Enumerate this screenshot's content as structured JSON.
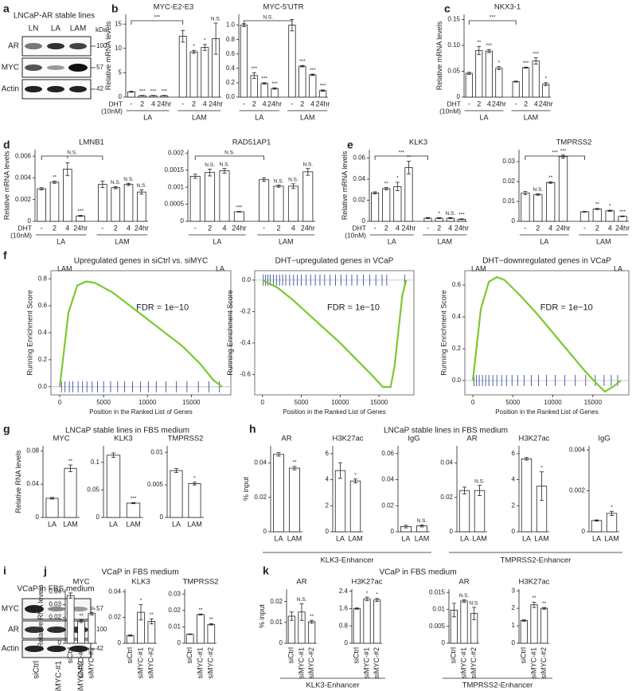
{
  "figure": {
    "panels": [
      "a",
      "b",
      "c",
      "d",
      "e",
      "f",
      "g",
      "h",
      "i",
      "j",
      "k"
    ],
    "blot_a": {
      "title": "LNCaP-AR stable lines",
      "lanes": [
        "LN",
        "LA",
        "LAM"
      ],
      "rows": [
        "AR",
        "MYC",
        "Actin"
      ],
      "unit": "kDa",
      "markers": [
        100,
        57,
        42
      ]
    },
    "blot_i": {
      "title": "VCaP in FBS medium",
      "lanes": [
        "siCtrl",
        "siMYC-#1",
        "siMYC-#2"
      ],
      "rows": [
        "MYC",
        "AR",
        "Actin"
      ],
      "markers": [
        57,
        100,
        42
      ]
    },
    "g_title": "LNCaP stable lines in FBS medium",
    "h_title": "LNCaP stable lines in FBS medium",
    "h_groups": [
      "KLK3-Enhancer",
      "TMPRSS2-Enhancer"
    ],
    "j_title": "VCaP in FBS medium",
    "k_title": "VCaP in FBS medium",
    "k_groups": [
      "KLK3-Enhancer",
      "TMPRSS2-Enhancer"
    ]
  },
  "chart_data": [
    {
      "type": "bar",
      "title": "MYC-E2-E3",
      "y_label": "Relative mRNA levels",
      "treatment_label": [
        "DHT",
        "(10nM)"
      ],
      "categories": [
        "-",
        "2",
        "4",
        "24hr",
        "-",
        "2",
        "4",
        "24hr"
      ],
      "groups": [
        "LA",
        "LAM"
      ],
      "values": [
        1.1,
        0.3,
        0.3,
        0.3,
        12.5,
        9.3,
        10.2,
        12
      ],
      "errors": [
        0.1,
        0.05,
        0.05,
        0.05,
        1.2,
        0.3,
        0.6,
        3.2
      ],
      "sig": [
        null,
        "***",
        "***",
        "***",
        null,
        "*",
        "*",
        "N.S."
      ],
      "bracket": "***",
      "ylim": [
        0,
        17
      ],
      "yticks": [
        0,
        5,
        10,
        15
      ]
    },
    {
      "type": "bar",
      "title": "MYC-5'UTR",
      "categories": [
        "-",
        "2",
        "4",
        "24hr",
        "-",
        "2",
        "4",
        "24hr"
      ],
      "groups": [
        "LA",
        "LAM"
      ],
      "values": [
        1.0,
        0.3,
        0.19,
        0.12,
        1.0,
        0.43,
        0.31,
        0.09
      ],
      "errors": [
        0.02,
        0.04,
        0.01,
        0.01,
        0.08,
        0.01,
        0.01,
        0.01
      ],
      "sig": [
        null,
        "***",
        "***",
        "***",
        null,
        "***",
        "***",
        "***"
      ],
      "bracket": "N.S.",
      "ylim": [
        0,
        1.15
      ],
      "yticks": [
        {
          "value": 0,
          "label": "0.0"
        },
        0.2,
        0.4,
        0.6,
        0.8,
        {
          "value": 1,
          "label": "1.0"
        }
      ]
    },
    {
      "type": "bar",
      "title": "NKX3-1",
      "y_label": "Relative mRNA levels",
      "treatment_label": [
        "DHT",
        "(10nM)"
      ],
      "categories": [
        "-",
        "2",
        "4",
        "24hr",
        "-",
        "2",
        "4",
        "24hr"
      ],
      "groups": [
        "LA",
        "LAM"
      ],
      "values": [
        0.046,
        0.09,
        0.089,
        0.056,
        0.03,
        0.057,
        0.07,
        0.025
      ],
      "errors": [
        0.002,
        0.008,
        0.003,
        0.003,
        0.001,
        0.001,
        0.006,
        0.003
      ],
      "sig": [
        null,
        "**",
        "***",
        "*",
        null,
        "***",
        "***",
        "*"
      ],
      "bracket": "***",
      "ylim": [
        0,
        0.16
      ],
      "yticks": [
        0,
        0.05,
        {
          "value": 0.1,
          "label": "0.10"
        },
        0.15
      ]
    },
    {
      "type": "bar",
      "title": "LMNB1",
      "y_label": "Relative mRNA levels",
      "treatment_label": [
        "DHT",
        "(10nM)"
      ],
      "categories": [
        "-",
        "2",
        "4",
        "24hr",
        "-",
        "2",
        "4",
        "24hr"
      ],
      "groups": [
        "LA",
        "LAM"
      ],
      "values": [
        0.003,
        0.0036,
        0.0048,
        0.0005,
        0.0034,
        0.0031,
        0.0034,
        0.0027
      ],
      "errors": [
        0.0001,
        0.0001,
        0.0006,
        5e-05,
        0.0003,
        0.0001,
        0.0001,
        0.0002
      ],
      "sig": [
        null,
        "**",
        "*",
        "***",
        null,
        "N.S.",
        "N.S.",
        "N.S."
      ],
      "bracket": "N.S.",
      "ylim": [
        0,
        0.0066
      ],
      "yticks": [
        0,
        0.002,
        0.004,
        0.006
      ]
    },
    {
      "type": "bar",
      "title": "RAD51AP1",
      "categories": [
        "-",
        "2",
        "4",
        "24hr",
        "-",
        "2",
        "4",
        "24hr"
      ],
      "groups": [
        "LA",
        "LAM"
      ],
      "values": [
        0.00132,
        0.00143,
        0.00148,
        0.00028,
        0.00122,
        0.00103,
        0.00103,
        0.00145
      ],
      "errors": [
        6e-05,
        0.0001,
        7e-05,
        1e-05,
        5e-05,
        3e-05,
        7e-05,
        0.0001
      ],
      "sig": [
        null,
        "N.S.",
        "N.S.",
        "***",
        null,
        "N.S.",
        "N.S.",
        "N.S."
      ],
      "bracket": "N.S.",
      "ylim": [
        0,
        0.0021
      ],
      "yticks": [
        0,
        0.0005,
        0.001,
        0.0015,
        0.002
      ]
    },
    {
      "type": "bar",
      "title": "KLK3",
      "y_label": "Relative mRNA levels",
      "treatment_label": [
        "DHT",
        "(10nM)"
      ],
      "categories": [
        "-",
        "2",
        "4",
        "24hr",
        "-",
        "2",
        "4",
        "24hr"
      ],
      "groups": [
        "LA",
        "LAM"
      ],
      "values": [
        0.027,
        0.031,
        0.033,
        0.051,
        0.003,
        0.003,
        0.003,
        0.002
      ],
      "errors": [
        0.001,
        0.001,
        0.004,
        0.006,
        0.0005,
        0.0005,
        0.0005,
        0.0004
      ],
      "sig": [
        null,
        "**",
        "*",
        "**",
        null,
        "*",
        "N.S.",
        "***"
      ],
      "bracket": "***",
      "ylim": [
        0,
        0.068
      ],
      "yticks": [
        0,
        0.02,
        0.04,
        0.06
      ]
    },
    {
      "type": "bar",
      "title": "TMPRSS2",
      "categories": [
        "-",
        "2",
        "4",
        "24hr",
        "-",
        "2",
        "4",
        "24hr"
      ],
      "groups": [
        "LA",
        "LAM"
      ],
      "values": [
        0.0142,
        0.0135,
        0.0195,
        0.0325,
        0.0048,
        0.0062,
        0.0053,
        0.0025
      ],
      "errors": [
        0.0008,
        0.0004,
        0.0004,
        0.0008,
        0.0002,
        0.0003,
        0.0003,
        0.0002
      ],
      "sig": [
        null,
        "N.S.",
        "**",
        "***",
        null,
        "**",
        "*",
        "***"
      ],
      "bracket": "***",
      "ylim": [
        0,
        0.036
      ],
      "yticks": [
        0,
        0.01,
        0.02,
        0.03
      ]
    },
    {
      "type": "line",
      "title": "Upregulated genes in siCtrl vs. siMYC",
      "x_label": "Position in the Ranked List of Genes",
      "y_label": "Running Enrichment Score",
      "left_label": "LAM",
      "right_label": "LA",
      "annotation": "FDR = 1e−10",
      "color": "#7dc832",
      "x": [
        0,
        1000,
        2000,
        3000,
        4000,
        6000,
        8000,
        10000,
        12000,
        14000,
        16000,
        17500,
        18500
      ],
      "values": [
        0,
        0.55,
        0.75,
        0.78,
        0.77,
        0.7,
        0.6,
        0.5,
        0.4,
        0.3,
        0.17,
        0.05,
        0
      ],
      "hits": [
        200,
        600,
        1100,
        1500,
        2100,
        2600,
        3100,
        3700,
        4300,
        5000,
        5800,
        6600,
        7400,
        8300,
        9200,
        10100,
        11000,
        12100,
        13300,
        14500,
        15800,
        17000,
        18200
      ],
      "xlim": [
        -1000,
        19500
      ],
      "ylim": [
        -0.06,
        0.86
      ],
      "xticks": [
        0,
        5000,
        10000,
        15000
      ],
      "yticks": [
        {
          "value": 0,
          "label": "0.0"
        },
        0.2,
        0.4,
        0.6,
        0.8
      ]
    },
    {
      "type": "line",
      "title": "DHT−upregulated genes in VCaP",
      "x_label": "Position in the Ranked List of Genes",
      "y_label": "Running Enrichment Score",
      "annotation": "FDR = 1e−10",
      "color": "#7dc832",
      "x": [
        0,
        2000,
        4000,
        6000,
        8000,
        10000,
        12000,
        14000,
        15500,
        16500,
        17000,
        18000,
        18500
      ],
      "values": [
        0,
        -0.05,
        -0.13,
        -0.22,
        -0.31,
        -0.4,
        -0.5,
        -0.6,
        -0.68,
        -0.68,
        -0.55,
        -0.1,
        0
      ],
      "hits": [
        100,
        400,
        700,
        1000,
        1400,
        1800,
        2200,
        2600,
        3000,
        3500,
        4000,
        4500,
        5000,
        5600,
        6200,
        6800,
        7400,
        8000,
        8700,
        9400,
        10100,
        10800,
        11500,
        12200,
        13000,
        13800,
        14600,
        15400,
        16000,
        18300
      ],
      "xlim": [
        -1000,
        19500
      ],
      "ylim": [
        -0.73,
        0.06
      ],
      "xticks": [
        0,
        5000,
        10000,
        15000
      ],
      "yticks": [
        -0.6,
        -0.4,
        -0.2,
        {
          "value": 0,
          "label": "0.0"
        }
      ]
    },
    {
      "type": "line",
      "title": "DHT−downregulated genes in VCaP",
      "x_label": "Position in the Ranked List of Genes",
      "y_label": "Running Enrichment Score",
      "left_label": "LAM",
      "right_label": "LA",
      "annotation": "FDR = 1e−10",
      "color": "#7dc832",
      "x": [
        0,
        1000,
        2000,
        3000,
        4000,
        6000,
        8000,
        10000,
        12000,
        14000,
        15500,
        16500,
        17500,
        18500
      ],
      "values": [
        0,
        0.45,
        0.62,
        0.65,
        0.63,
        0.53,
        0.42,
        0.3,
        0.18,
        0.06,
        -0.02,
        -0.07,
        -0.04,
        0
      ],
      "hits": [
        150,
        450,
        800,
        1200,
        1600,
        2000,
        2500,
        3000,
        3600,
        4200,
        4900,
        5600,
        6400,
        7300,
        8200,
        9200,
        10300,
        11500,
        12800,
        14100,
        15300,
        16400,
        17300,
        18100
      ],
      "xlim": [
        -1000,
        19500
      ],
      "ylim": [
        -0.09,
        0.69
      ],
      "xticks": [
        0,
        5000,
        10000,
        15000
      ],
      "yticks": [
        {
          "value": 0,
          "label": "0.0"
        },
        0.2,
        0.4,
        0.6
      ]
    },
    {
      "type": "bar",
      "title": "MYC",
      "y_label": "Relative RNA levels",
      "categories": [
        "LA",
        "LAM"
      ],
      "values": [
        0.023,
        0.059
      ],
      "errors": [
        0.001,
        0.004
      ],
      "sig": [
        null,
        "**"
      ],
      "ylim": [
        0,
        0.086
      ],
      "yticks": [
        0,
        0.04,
        0.08
      ]
    },
    {
      "type": "bar",
      "title": "KLK3",
      "categories": [
        "LA",
        "LAM"
      ],
      "values": [
        0.113,
        0.026
      ],
      "errors": [
        0.004,
        0.001
      ],
      "sig": [
        null,
        "***"
      ],
      "ylim": [
        0,
        0.13
      ],
      "yticks": [
        0,
        0.05,
        0.1
      ]
    },
    {
      "type": "bar",
      "title": "TMPRSS2",
      "categories": [
        "LA",
        "LAM"
      ],
      "values": [
        0.0072,
        0.0052
      ],
      "errors": [
        0.0003,
        0.0002
      ],
      "sig": [
        null,
        "*"
      ],
      "ylim": [
        0,
        0.011
      ],
      "yticks": [
        0,
        0.005,
        0.01
      ]
    },
    {
      "type": "bar",
      "title": "AR",
      "y_label": "% input",
      "categories": [
        "LA",
        "LAM"
      ],
      "values": [
        0.045,
        0.037
      ],
      "errors": [
        0.001,
        0.001
      ],
      "sig": [
        null,
        "**"
      ],
      "ylim": [
        0,
        0.05
      ],
      "yticks": [
        0,
        0.02,
        0.04
      ]
    },
    {
      "type": "bar",
      "title": "H3K27ac",
      "categories": [
        "LA",
        "LAM"
      ],
      "values": [
        4.7,
        3.9
      ],
      "errors": [
        0.6,
        0.15
      ],
      "sig": [
        null,
        "*"
      ],
      "ylim": [
        0,
        6.6
      ],
      "yticks": [
        0,
        2,
        4,
        6
      ]
    },
    {
      "type": "bar",
      "title": "IgG",
      "categories": [
        "LA",
        "LAM"
      ],
      "values": [
        0.004,
        0.0045
      ],
      "errors": [
        0.001,
        0.0008
      ],
      "sig": [
        null,
        "N.S."
      ],
      "ylim": [
        0,
        0.066
      ],
      "yticks": [
        0,
        0.02,
        0.04,
        0.06
      ]
    },
    {
      "type": "bar",
      "title": "AR",
      "categories": [
        "LA",
        "LAM"
      ],
      "values": [
        0.024,
        0.024
      ],
      "errors": [
        0.002,
        0.003
      ],
      "sig": [
        null,
        "N.S."
      ],
      "ylim": [
        0,
        0.05
      ],
      "yticks": [
        0,
        0.02,
        0.04
      ]
    },
    {
      "type": "bar",
      "title": "H3K27ac",
      "categories": [
        "LA",
        "LAM"
      ],
      "values": [
        5.6,
        3.5
      ],
      "errors": [
        0.1,
        1.1
      ],
      "sig": [
        null,
        "*"
      ],
      "ylim": [
        0,
        6.6
      ],
      "yticks": [
        0,
        2,
        4,
        6
      ]
    },
    {
      "type": "bar",
      "title": "IgG",
      "categories": [
        "LA",
        "LAM"
      ],
      "values": [
        0.00055,
        0.0009
      ],
      "errors": [
        3e-05,
        0.0001
      ],
      "sig": [
        null,
        "*"
      ],
      "ylim": [
        0,
        0.0042
      ],
      "yticks": [
        0,
        0.002,
        0.004
      ]
    },
    {
      "type": "bar",
      "title": "MYC",
      "y_label": "Relative RNA levels",
      "rotate_labels": true,
      "categories": [
        "siCtrl",
        "siMYC-#1",
        "siMYC-#2"
      ],
      "values": [
        0.037,
        0.017,
        0.023
      ],
      "errors": [
        0.002,
        0.001,
        0.001
      ],
      "sig": [
        null,
        "**",
        "**"
      ],
      "ylim": [
        0,
        0.042
      ],
      "yticks": [
        0,
        0.01,
        0.02,
        0.03,
        0.04
      ]
    },
    {
      "type": "bar",
      "title": "KLK3",
      "rotate_labels": true,
      "categories": [
        "siCtrl",
        "siMYC-#1",
        "siMYC-#2"
      ],
      "values": [
        0.006,
        0.024,
        0.017
      ],
      "errors": [
        0.0005,
        0.006,
        0.002
      ],
      "sig": [
        null,
        "*",
        "**"
      ],
      "ylim": [
        0,
        0.042
      ],
      "yticks": [
        0,
        0.02,
        0.04
      ]
    },
    {
      "type": "bar",
      "title": "TMPRSS2",
      "rotate_labels": true,
      "categories": [
        "siCtrl",
        "siMYC-#1",
        "siMYC-#2"
      ],
      "values": [
        0.0055,
        0.0175,
        0.0115
      ],
      "errors": [
        0.0002,
        0.0003,
        0.0004
      ],
      "sig": [
        null,
        "**",
        "**"
      ],
      "ylim": [
        0,
        0.033
      ],
      "yticks": [
        0,
        0.01,
        0.02,
        0.03
      ]
    },
    {
      "type": "bar",
      "title": "AR",
      "y_label": "% input",
      "rotate_labels": true,
      "categories": [
        "siCtrl",
        "siMYC-#1",
        "siMYC-#2"
      ],
      "values": [
        0.013,
        0.015,
        0.0103
      ],
      "errors": [
        0.002,
        0.004,
        0.0007
      ],
      "sig": [
        null,
        "N.S.",
        "**"
      ],
      "ylim": [
        0,
        0.026
      ],
      "yticks": [
        0,
        0.01,
        0.02
      ]
    },
    {
      "type": "bar",
      "title": "H3K27ac",
      "rotate_labels": true,
      "categories": [
        "siCtrl",
        "siMYC-#1",
        "siMYC-#2"
      ],
      "values": [
        1.6,
        2.05,
        2.0
      ],
      "errors": [
        0.03,
        0.08,
        0.07
      ],
      "sig": [
        null,
        "*",
        "*"
      ],
      "ylim": [
        0,
        2.5
      ],
      "yticks": [
        0,
        0.8,
        1.6,
        2.4
      ]
    },
    {
      "type": "bar",
      "title": "AR",
      "rotate_labels": true,
      "categories": [
        "siCtrl",
        "siMYC-#1",
        "siMYC-#2"
      ],
      "values": [
        0.0098,
        0.0125,
        0.0088
      ],
      "errors": [
        0.002,
        0.0004,
        0.0018
      ],
      "sig": [
        null,
        "N.S.",
        "N.S."
      ],
      "ylim": [
        0,
        0.016
      ],
      "yticks": [
        0,
        0.005,
        0.01,
        0.015
      ]
    },
    {
      "type": "bar",
      "title": "H3K27ac",
      "rotate_labels": true,
      "categories": [
        "siCtrl",
        "siMYC-#1",
        "siMYC-#2"
      ],
      "values": [
        1.3,
        2.2,
        2.0
      ],
      "errors": [
        0.04,
        0.15,
        0.05
      ],
      "sig": [
        null,
        "**",
        "**"
      ],
      "ylim": [
        0,
        3.1
      ],
      "yticks": [
        0,
        1,
        2,
        3
      ]
    }
  ]
}
